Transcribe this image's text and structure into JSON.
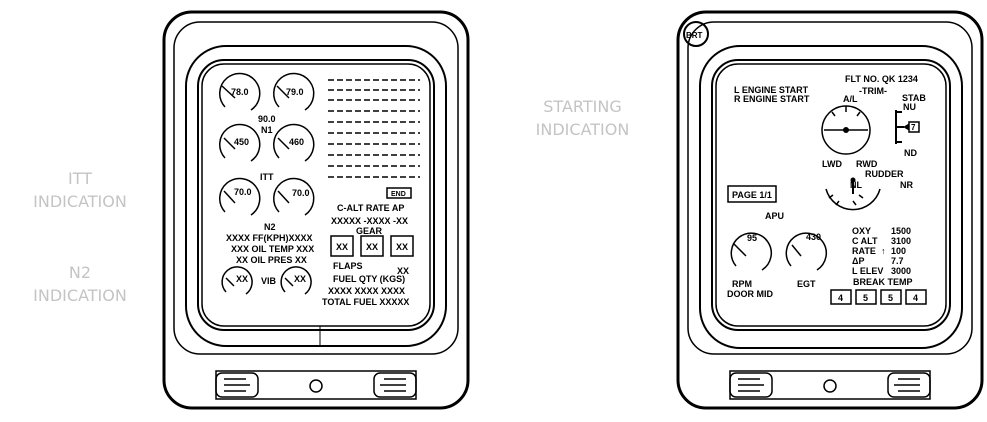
{
  "callouts": {
    "itt": [
      "ITT",
      "INDICATION"
    ],
    "n2": [
      "N2",
      "INDICATION"
    ],
    "starting": [
      "STARTING",
      "INDICATION"
    ]
  },
  "left_display": {
    "n1_left": "78.0",
    "n1_right": "79.0",
    "n1_center": "90.0",
    "n1_label": "N1",
    "itt_left": "450",
    "itt_right": "460",
    "itt_label": "ITT",
    "n2_left": "70.0",
    "n2_right": "70.0",
    "n2_label": "N2",
    "end_label": "END",
    "calt_header": "C-ALT RATE AP",
    "calt_values": "XXXXX -XXXX -XX",
    "ff_line": "XXXX FF(KPH)XXXX",
    "oil_temp_line": "XXX OIL TEMP XXX",
    "oil_pres_line": "XX OIL PRES XX",
    "gear_label": "GEAR",
    "gear_boxes": [
      "XX",
      "XX",
      "XX"
    ],
    "flaps_label": "FLAPS",
    "flaps_value": "XX",
    "fuel_qty_label": "FUEL QTY (KGS)",
    "fuel_qty_values": "XXXX  XXXX  XXXX",
    "total_fuel": "TOTAL FUEL XXXXX",
    "vib_left": "XX",
    "vib_label": "VIB",
    "vib_right": "XX"
  },
  "right_display": {
    "brt_label": "BRT",
    "engine_start_l": "L ENGINE START",
    "engine_start_r": "R ENGINE START",
    "flight_no": "FLT NO.  QK 1234",
    "trim_label": "-TRIM-",
    "al_label": "A/L",
    "stab_label": "STAB",
    "nu_label": "NU",
    "stab_value": "7",
    "nd_label": "ND",
    "lwd_label": "LWD",
    "rwd_label": "RWD",
    "rudder_label": "RUDDER",
    "nl_label": "NL",
    "nr_label": "NR",
    "page_label": "PAGE 1/1",
    "apu_label": "APU",
    "rpm_value": "95",
    "egt_value": "430",
    "rpm_label": "RPM",
    "door_label": "DOOR MID",
    "egt_label": "EGT",
    "oxy_label": "OXY",
    "oxy_value": "1500",
    "calt_label": "C ALT",
    "calt_value": "3100",
    "rate_label": "RATE",
    "rate_value": "100",
    "dp_label": "ΔP",
    "dp_value": "7.7",
    "lelev_label": "L ELEV",
    "lelev_value": "3000",
    "brake_label": "BREAK TEMP",
    "brake_values": [
      "4",
      "5",
      "5",
      "4"
    ]
  }
}
